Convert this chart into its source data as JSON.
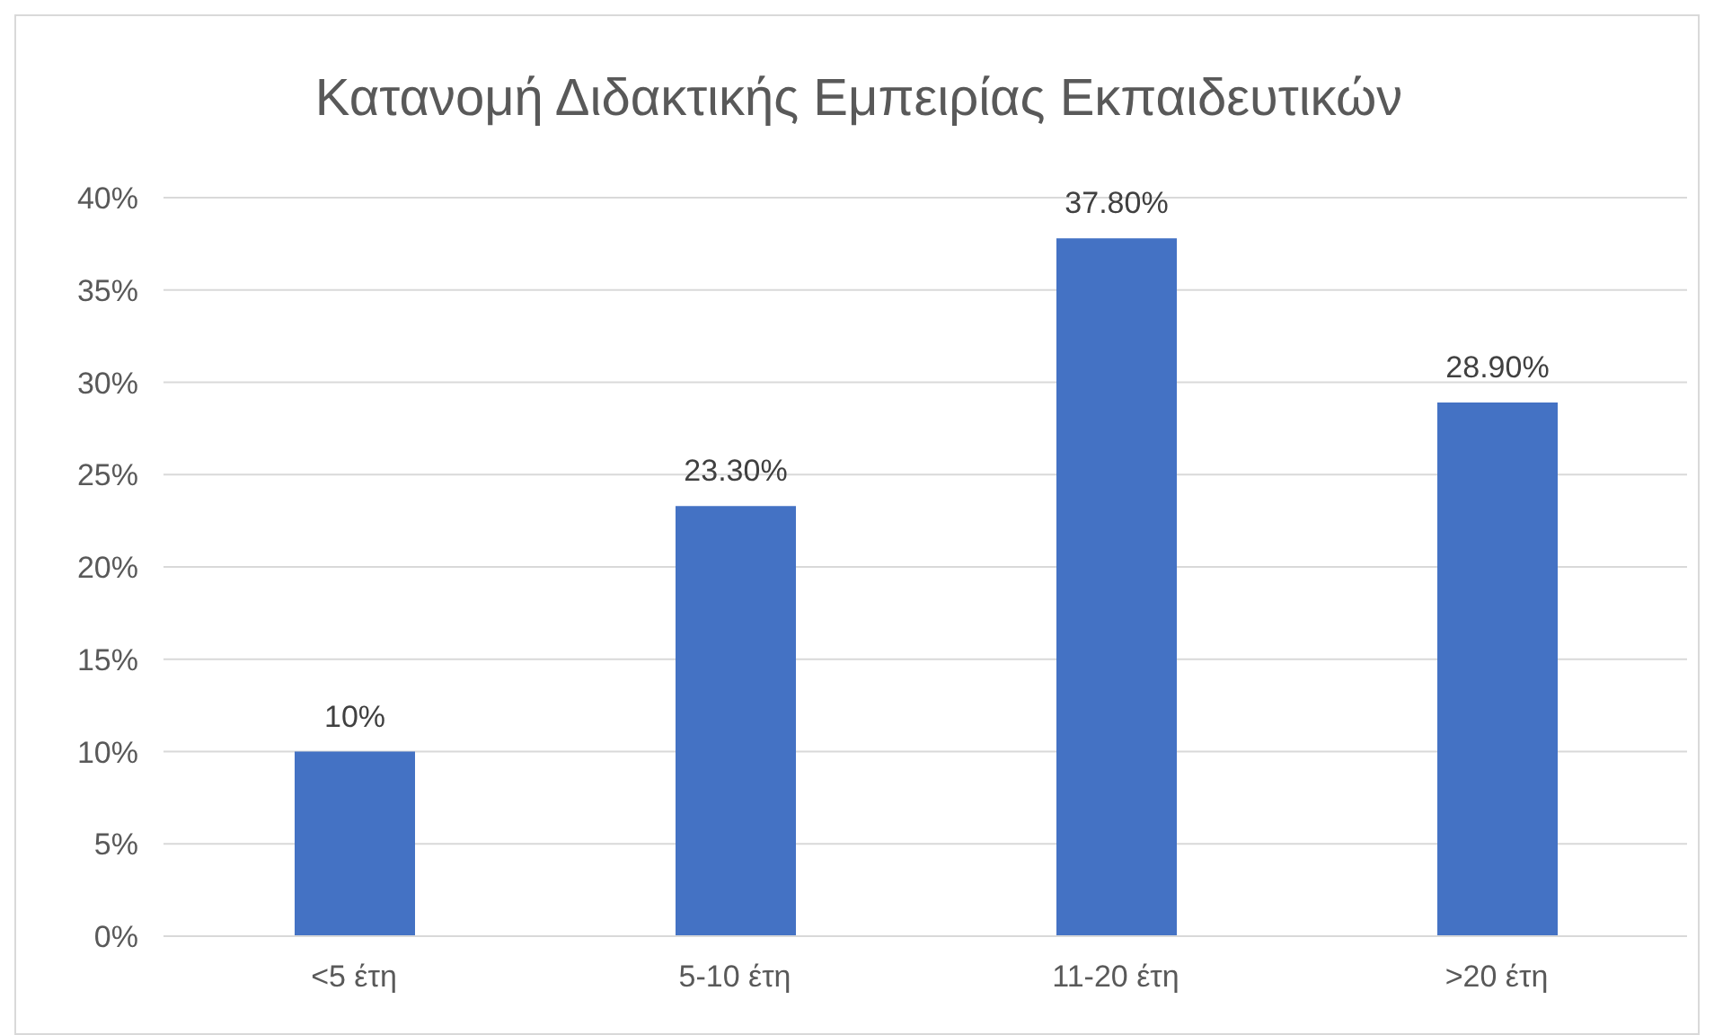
{
  "chart_data": {
    "type": "bar",
    "title": "Κατανομή Διδακτικής Εμπειρίας Εκπαιδευτικών",
    "categories": [
      "<5 έτη",
      "5-10 έτη",
      "11-20 έτη",
      ">20 έτη"
    ],
    "values": [
      10,
      23.3,
      37.8,
      28.9
    ],
    "value_labels": [
      "10%",
      "23.30%",
      "37.80%",
      "28.90%"
    ],
    "color": "#4472c4",
    "ylim": [
      0,
      40
    ],
    "yticks": [
      {
        "value": 0,
        "label": "0%"
      },
      {
        "value": 5,
        "label": "5%"
      },
      {
        "value": 10,
        "label": "10%"
      },
      {
        "value": 15,
        "label": "15%"
      },
      {
        "value": 20,
        "label": "20%"
      },
      {
        "value": 25,
        "label": "25%"
      },
      {
        "value": 30,
        "label": "30%"
      },
      {
        "value": 35,
        "label": "35%"
      },
      {
        "value": 40,
        "label": "40%"
      }
    ],
    "grid": "y",
    "legend": false
  }
}
